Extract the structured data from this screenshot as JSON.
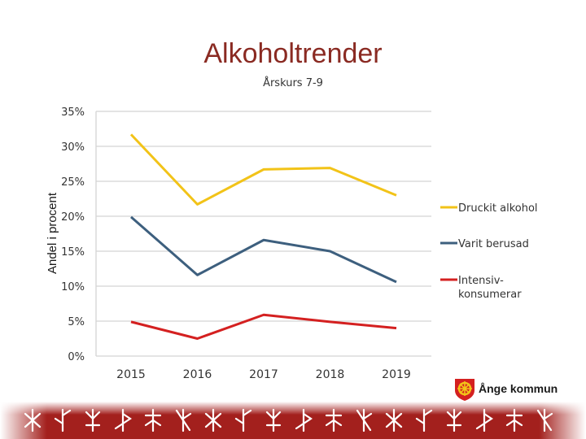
{
  "page": {
    "title": "Alkoholtrender",
    "subtitle": "Årskurs 7-9",
    "logo_text": "Ånge kommun"
  },
  "colors": {
    "title": "#8a2a22",
    "footer_band": "#a3201d",
    "logo_red": "#d42020",
    "logo_yellow": "#f2c318"
  },
  "chart_data": {
    "type": "line",
    "categories": [
      "2015",
      "2016",
      "2017",
      "2018",
      "2019"
    ],
    "ylabel": "Andel i procent",
    "ylim": [
      0,
      35
    ],
    "yticks": [
      0,
      5,
      10,
      15,
      20,
      25,
      30,
      35
    ],
    "ytick_labels": [
      "0%",
      "5%",
      "10%",
      "15%",
      "20%",
      "25%",
      "30%",
      "35%"
    ],
    "grid": true,
    "legend_position": "right",
    "series": [
      {
        "name": "Druckit alkohol",
        "color": "#f2c318",
        "values": [
          31.7,
          21.7,
          26.7,
          26.9,
          23.0
        ]
      },
      {
        "name": "Varit berusad",
        "color": "#3d5f7e",
        "values": [
          19.9,
          11.6,
          16.6,
          15.0,
          10.6
        ]
      },
      {
        "name": "Intensiv- konsumerar",
        "color": "#d42020",
        "values": [
          4.9,
          2.5,
          5.9,
          4.9,
          4.0
        ]
      }
    ]
  }
}
